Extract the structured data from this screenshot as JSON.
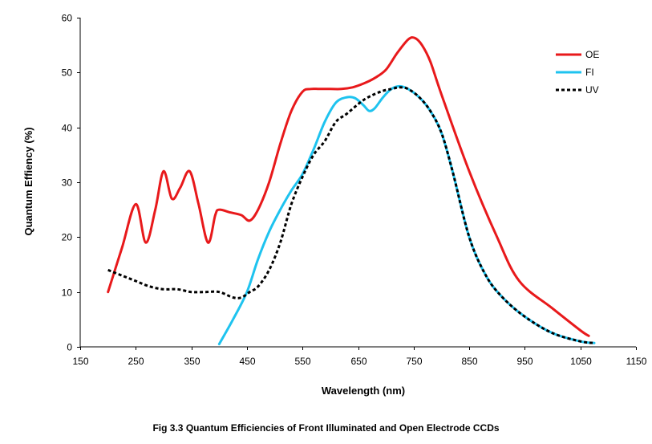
{
  "chart_data": {
    "type": "line",
    "title": "",
    "xlabel": "Wavelength (nm)",
    "ylabel": "Quantum Effiency (%)",
    "xlim": [
      150,
      1150
    ],
    "ylim": [
      0,
      60
    ],
    "xticks": [
      150,
      250,
      350,
      450,
      550,
      650,
      750,
      850,
      950,
      1050,
      1150
    ],
    "yticks": [
      0,
      10,
      20,
      30,
      40,
      50,
      60
    ],
    "grid": false,
    "legend_position": "top-right",
    "series": [
      {
        "name": "OE",
        "color": "#e8191b",
        "style": "solid",
        "x": [
          200,
          225,
          250,
          268,
          285,
          300,
          315,
          330,
          347,
          363,
          380,
          393,
          400,
          420,
          440,
          455,
          470,
          490,
          510,
          530,
          550,
          565,
          580,
          600,
          620,
          640,
          660,
          680,
          700,
          720,
          740,
          752,
          765,
          780,
          800,
          850,
          900,
          940,
          1000,
          1050,
          1065
        ],
        "y": [
          10,
          18,
          26,
          19,
          25,
          32,
          27,
          29,
          32,
          26,
          19,
          24,
          25,
          24.5,
          24,
          23,
          25,
          30,
          37,
          43,
          46.5,
          47,
          47,
          47,
          47,
          47.3,
          48,
          49,
          50.5,
          53.5,
          56,
          56.3,
          55,
          52,
          46,
          32,
          20,
          12,
          7,
          3,
          2
        ]
      },
      {
        "name": "FI",
        "color": "#1ec3ef",
        "style": "solid",
        "x": [
          400,
          425,
          450,
          470,
          490,
          510,
          530,
          550,
          570,
          590,
          610,
          630,
          645,
          660,
          670,
          680,
          695,
          710,
          725,
          740,
          760,
          780,
          800,
          820,
          850,
          880,
          910,
          950,
          1000,
          1050,
          1075
        ],
        "y": [
          0.5,
          5,
          10,
          16,
          21,
          25,
          28.5,
          31.5,
          36,
          41,
          44.5,
          45.5,
          45.3,
          44,
          43,
          43.5,
          45.5,
          47,
          47.5,
          47,
          45.5,
          43,
          39,
          32,
          20,
          13,
          9,
          5.5,
          2.5,
          1,
          0.7
        ]
      },
      {
        "name": "UV",
        "color": "#000000",
        "style": "dotted",
        "x": [
          200,
          225,
          250,
          275,
          300,
          325,
          350,
          375,
          400,
          425,
          440,
          455,
          470,
          490,
          510,
          530,
          550,
          570,
          590,
          610,
          630,
          660,
          690,
          710,
          725,
          740,
          760,
          780,
          800,
          820,
          850,
          880,
          910,
          950,
          1000,
          1050,
          1075
        ],
        "y": [
          14,
          13,
          12,
          11,
          10.5,
          10.5,
          10,
          10,
          10,
          9,
          9,
          10,
          11,
          14,
          19,
          26,
          31,
          35,
          37.5,
          41,
          42.5,
          45,
          46.5,
          47,
          47.3,
          47,
          45.5,
          43,
          39,
          32,
          20,
          13,
          9,
          5.5,
          2.5,
          1,
          0.7
        ]
      }
    ]
  },
  "caption": "Fig 3.3  Quantum Efficiencies of Front Illuminated and Open Electrode CCDs"
}
